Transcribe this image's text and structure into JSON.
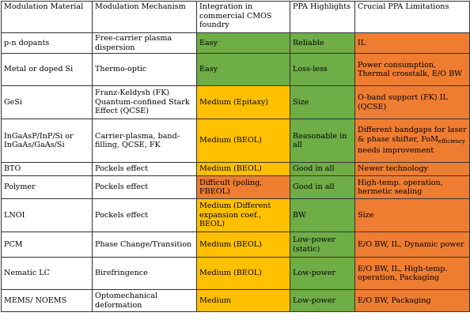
{
  "table": {
    "headers": [
      "Modulation Material",
      "Modulation Mechanism",
      "Integration in commercial CMOS foundry",
      "PPA Highlights",
      "Crucial PPA Limitations"
    ],
    "colors": {
      "green": "#6fad47",
      "yellow": "#ffc000",
      "orange": "#ef7d31"
    },
    "rows": [
      {
        "material": "p-n dopants",
        "mechanism": "Free-carrier plasma dispersion",
        "integration": "Easy",
        "integration_color": "green",
        "highlights": "Reliable",
        "highlights_color": "green",
        "limitations": "IL",
        "limitations_color": "orange"
      },
      {
        "material": "Metal or doped Si",
        "mechanism": "Thermo-optic",
        "integration": "Easy",
        "integration_color": "green",
        "highlights": "Loss-less",
        "highlights_color": "green",
        "limitations": "Power consumption, Thermal crosstalk, E/O BW",
        "limitations_color": "orange"
      },
      {
        "material": "GeSi",
        "mechanism": "Franz-Keldysh (FK) Quantum-confined Stark Effect (QCSE)",
        "integration": "Medium (Epitaxy)",
        "integration_color": "yellow",
        "highlights": "Size",
        "highlights_color": "green",
        "limitations": "O-band support (FK) IL (QCSE)",
        "limitations_color": "orange"
      },
      {
        "material": "InGaAsP/InP/Si or InGaAs/GaAs/Si",
        "mechanism": "Carrier-plasma, band-filling, QCSE, FK",
        "integration": "Medium (BEOL)",
        "integration_color": "yellow",
        "highlights": "Reasonable in all",
        "highlights_color": "green",
        "limitations": "Different bandgaps for laser & phase shifter,",
        "limitations_fom": "FoM",
        "limitations_fom_sub": "efficiency",
        "limitations_fom_tail": " needs improvement",
        "limitations_color": "orange"
      },
      {
        "material": "BTO",
        "mechanism": "Pockels effect",
        "integration": "Medium (BEOL)",
        "integration_color": "yellow",
        "highlights": "Good in all",
        "highlights_color": "green",
        "limitations": "Newer technology",
        "limitations_color": "orange"
      },
      {
        "material": "Polymer",
        "mechanism": "Pockels effect",
        "integration": "Difficult (poling, FBEOL)",
        "integration_color": "orange",
        "highlights": "Good in all",
        "highlights_color": "green",
        "limitations": "High-temp. operation, hermetic sealing",
        "limitations_color": "orange"
      },
      {
        "material": "LNOI",
        "mechanism": "Pockels effect",
        "integration": "Medium (Different expansion coef., BEOL)",
        "integration_color": "yellow",
        "highlights": "BW",
        "highlights_color": "green",
        "limitations": "Size",
        "limitations_color": "orange"
      },
      {
        "material": "PCM",
        "mechanism": "Phase Change/Transition",
        "integration": "Medium (BEOL)",
        "integration_color": "yellow",
        "highlights": "Low-power (static)",
        "highlights_color": "green",
        "limitations": "E/O BW, IL, Dynamic power",
        "limitations_color": "orange"
      },
      {
        "material": "Nematic LC",
        "mechanism": "Birefringence",
        "integration": "Medium (BEOL)",
        "integration_color": "yellow",
        "highlights": "Low-power",
        "highlights_color": "green",
        "limitations": "E/O BW, IL, High-temp. operation, Packaging",
        "limitations_color": "orange"
      },
      {
        "material": "MEMS/ NOEMS",
        "mechanism": "Optomechanical deformation",
        "integration": "Medium",
        "integration_color": "yellow",
        "highlights": "Low-power",
        "highlights_color": "green",
        "limitations": "E/O BW, Packaging",
        "limitations_color": "orange"
      }
    ]
  }
}
